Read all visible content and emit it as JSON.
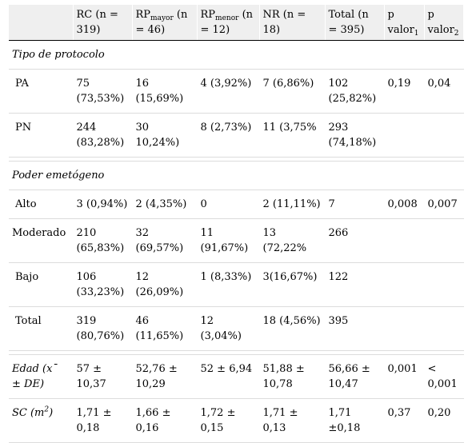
{
  "header": {
    "blank": "",
    "rc": "RC (n = 319)",
    "rp_mayor": {
      "pre": "RP",
      "sub": "mayor",
      "post": " (n = 46)"
    },
    "rp_menor": {
      "pre": "RP",
      "sub": "menor",
      "post": " (n = 12)"
    },
    "nr": "NR (n = 18)",
    "total": "Total (n = 395)",
    "p1": {
      "pre": "p valor",
      "sub": "1"
    },
    "p2": {
      "pre": "p valor",
      "sub": "2"
    }
  },
  "sections": {
    "protocolo": "Tipo de protocolo",
    "emetogeno": "Poder emetógeno"
  },
  "rows": {
    "pa": [
      "PA",
      "75 (73,53%)",
      "16 (15,69%)",
      "4 (3,92%)",
      "7 (6,86%)",
      "102 (25,82%)",
      "0,19",
      "0,04"
    ],
    "pn": [
      "PN",
      "244 (83,28%)",
      "30 10,24%)",
      "8 (2,73%)",
      "11 (3,75%",
      "293 (74,18%)",
      "",
      ""
    ],
    "alto": [
      "Alto",
      "3 (0,94%)",
      "2 (4,35%)",
      "0",
      "2 (11,11%)",
      "7",
      "0,008",
      "0,007"
    ],
    "moderado": [
      "Moderado",
      "210 (65,83%)",
      "32 (69,57%)",
      "11 (91,67%)",
      "13 (72,22%",
      "266",
      "",
      ""
    ],
    "bajo": [
      "Bajo",
      "106 (33,23%)",
      "12 (26,09%)",
      "1 (8,33%)",
      "3(16,67%)",
      "122",
      "",
      ""
    ],
    "total": [
      "Total",
      "319 (80,76%)",
      "46 (11,65%)",
      "12 (3,04%)",
      "18 (4,56%)",
      "395",
      "",
      ""
    ],
    "edad": [
      "Edad (x¯ ± DE)",
      "57 ± 10,37",
      "52,76 ± 10,29",
      "52 ± 6,94",
      "51,88 ± 10,78",
      "56,66 ± 10,47",
      "0,001",
      "< 0,001"
    ],
    "sc": {
      "label_pre": "SC (m",
      "label_sup": "2",
      "label_post": ")",
      "values": [
        "1,71 ± 0,18",
        "1,66 ± 0,16",
        "1,72 ± 0,15",
        "1,71 ± 0,13",
        "1,71 ±0,18",
        "0,37",
        "0,20"
      ]
    }
  }
}
